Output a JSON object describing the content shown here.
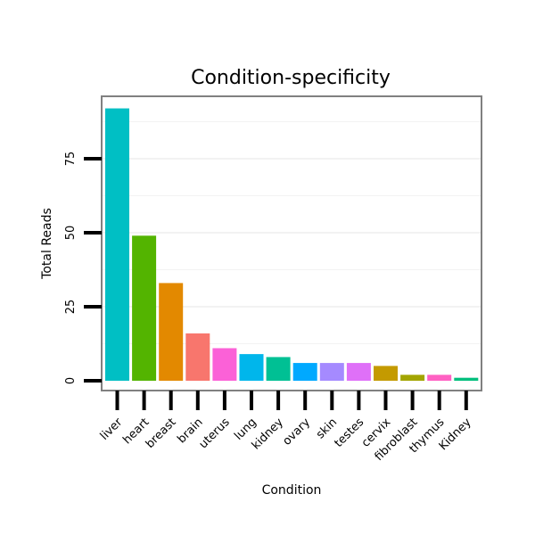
{
  "chart_data": {
    "type": "bar",
    "title": "Condition-specificity",
    "xlabel": "Condition",
    "ylabel": "Total Reads",
    "categories": [
      "liver",
      "heart",
      "breast",
      "brain",
      "uterus",
      "lung",
      "kidney",
      "ovary",
      "skin",
      "testes",
      "cervix",
      "fibroblast",
      "thymus",
      "Kidney"
    ],
    "values": [
      92,
      49,
      33,
      16,
      11,
      9,
      8,
      6,
      6,
      6,
      5,
      2,
      2,
      1
    ],
    "colors": [
      "#00BFC4",
      "#53B400",
      "#E38900",
      "#F8766D",
      "#FB61D7",
      "#00B6EB",
      "#00C094",
      "#00A9FF",
      "#A58AFF",
      "#DF70F8",
      "#C49A00",
      "#A3A500",
      "#FF61C3",
      "#00BF7D"
    ],
    "yticks": [
      0,
      25,
      50,
      75
    ],
    "ylim": [
      0,
      95
    ],
    "grid": true,
    "legend": "none"
  }
}
